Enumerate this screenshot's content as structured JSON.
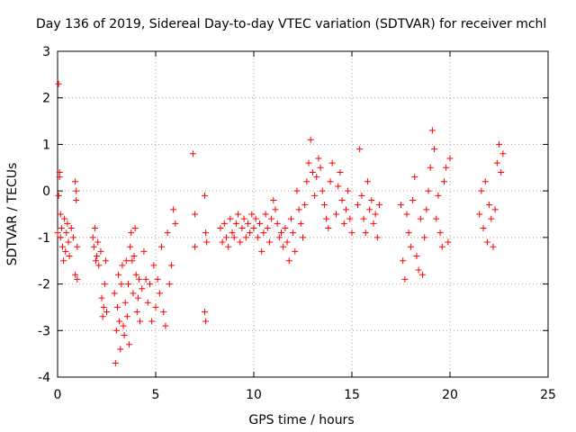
{
  "chart_data": {
    "type": "scatter",
    "title": "Day 136 of 2019, Sidereal Day-to-day VTEC variation (SDTVAR) for receiver mchl",
    "xlabel": "GPS time / hours",
    "ylabel": "SDTVAR / TECUs",
    "xlim": [
      0,
      25
    ],
    "ylim": [
      -4,
      3
    ],
    "xticks": [
      "0",
      "5",
      "10",
      "15",
      "20",
      "25"
    ],
    "yticks": [
      "-4",
      "-3",
      "-2",
      "-1",
      "0",
      "1",
      "2",
      "3"
    ],
    "grid": true,
    "marker": "plus",
    "color": "#ff0000",
    "series": [
      {
        "name": "SDTVAR",
        "x": [
          0.0,
          0.05,
          0.1,
          0.15,
          0.2,
          0.25,
          0.3,
          0.35,
          0.4,
          0.45,
          0.5,
          0.55,
          0.6,
          0.7,
          0.8,
          0.9,
          0.95,
          1.0,
          0.05,
          0.1,
          0.15,
          0.9,
          0.95,
          1.0,
          1.8,
          1.85,
          1.9,
          1.95,
          2.0,
          2.05,
          2.1,
          2.2,
          2.25,
          2.3,
          2.35,
          2.4,
          2.45,
          2.5,
          2.9,
          2.95,
          3.0,
          3.05,
          3.1,
          3.15,
          3.2,
          3.25,
          3.3,
          3.35,
          3.4,
          3.45,
          3.5,
          3.55,
          3.6,
          3.65,
          3.7,
          3.75,
          3.8,
          3.85,
          3.9,
          3.95,
          4.0,
          4.05,
          4.1,
          4.15,
          4.2,
          4.3,
          4.4,
          4.5,
          4.6,
          4.7,
          4.8,
          4.9,
          5.0,
          5.1,
          5.2,
          5.3,
          5.4,
          5.5,
          5.6,
          5.7,
          5.8,
          5.9,
          6.0,
          6.9,
          7.0,
          7.0,
          7.5,
          7.55,
          7.6,
          7.5,
          7.55,
          8.3,
          8.4,
          8.5,
          8.6,
          8.7,
          8.8,
          8.9,
          9.0,
          9.1,
          9.2,
          9.3,
          9.4,
          9.5,
          9.6,
          9.7,
          9.8,
          9.9,
          10.0,
          10.1,
          10.2,
          10.3,
          10.4,
          10.5,
          10.6,
          10.7,
          10.8,
          10.9,
          11.0,
          11.1,
          11.2,
          11.3,
          11.4,
          11.5,
          11.6,
          11.7,
          11.8,
          11.9,
          12.0,
          12.1,
          12.2,
          12.3,
          12.4,
          12.5,
          12.6,
          12.7,
          12.8,
          12.9,
          13.0,
          13.1,
          13.2,
          13.3,
          13.4,
          13.5,
          13.6,
          13.7,
          13.8,
          13.9,
          14.0,
          14.2,
          14.3,
          14.4,
          14.5,
          14.6,
          14.7,
          14.8,
          14.9,
          15.0,
          15.3,
          15.4,
          15.5,
          15.6,
          15.7,
          15.8,
          15.9,
          16.0,
          16.1,
          16.2,
          16.3,
          16.4,
          17.5,
          17.6,
          17.7,
          17.8,
          17.9,
          18.0,
          18.1,
          18.2,
          18.3,
          18.4,
          18.5,
          18.6,
          18.7,
          18.8,
          18.9,
          19.0,
          19.1,
          19.2,
          19.3,
          19.4,
          19.5,
          19.6,
          19.7,
          19.8,
          19.9,
          20.0,
          21.5,
          21.6,
          21.7,
          21.8,
          21.9,
          22.0,
          22.1,
          22.2,
          22.3,
          22.4,
          22.5,
          22.6,
          22.7
        ],
        "y": [
          -0.9,
          2.3,
          0.4,
          -1.0,
          -0.8,
          -1.2,
          -1.5,
          -0.6,
          -1.3,
          -0.9,
          -0.7,
          -1.1,
          -1.4,
          -0.8,
          -1.0,
          -1.8,
          0.0,
          -1.2,
          -0.1,
          0.3,
          -0.5,
          0.2,
          -0.2,
          -1.9,
          -1.0,
          -1.2,
          -0.8,
          -1.5,
          -1.4,
          -1.1,
          -1.6,
          -1.3,
          -2.3,
          -2.7,
          -2.5,
          -2.0,
          -1.5,
          -2.6,
          -2.2,
          -3.7,
          -3.0,
          -2.5,
          -1.8,
          -2.8,
          -3.4,
          -2.0,
          -1.6,
          -2.9,
          -3.1,
          -2.4,
          -1.5,
          -2.7,
          -2.0,
          -3.3,
          -1.2,
          -0.9,
          -1.5,
          -2.2,
          -1.4,
          -0.8,
          -1.8,
          -2.6,
          -2.3,
          -1.9,
          -2.8,
          -2.1,
          -1.3,
          -1.9,
          -2.4,
          -2.0,
          -2.8,
          -1.6,
          -2.5,
          -1.9,
          -2.2,
          -1.2,
          -2.6,
          -2.9,
          -0.9,
          -2.0,
          -1.6,
          -0.4,
          -0.7,
          0.8,
          -0.5,
          -1.2,
          -0.1,
          -0.9,
          -1.1,
          -2.6,
          -2.8,
          -0.8,
          -1.1,
          -0.7,
          -1.0,
          -1.2,
          -0.6,
          -0.9,
          -1.0,
          -0.7,
          -0.5,
          -1.1,
          -0.8,
          -0.6,
          -1.0,
          -0.7,
          -0.9,
          -0.5,
          -0.8,
          -0.6,
          -1.0,
          -0.7,
          -1.3,
          -0.9,
          -0.5,
          -0.8,
          -1.1,
          -0.6,
          -0.2,
          -0.4,
          -0.7,
          -1.0,
          -0.9,
          -1.2,
          -0.8,
          -1.1,
          -1.5,
          -0.6,
          -0.9,
          -1.3,
          0.0,
          -0.4,
          -0.7,
          -1.0,
          -0.3,
          0.2,
          0.6,
          1.1,
          0.4,
          -0.1,
          0.3,
          0.7,
          0.5,
          0.0,
          -0.3,
          -0.6,
          -0.8,
          0.2,
          0.6,
          -0.5,
          0.1,
          0.4,
          -0.2,
          -0.7,
          -0.4,
          0.0,
          -0.6,
          -0.9,
          -0.3,
          0.9,
          -0.1,
          -0.6,
          -0.9,
          0.2,
          -0.4,
          -0.2,
          -0.7,
          -0.5,
          -1.0,
          -0.3,
          -0.3,
          -1.5,
          -1.9,
          -0.5,
          -0.9,
          -1.2,
          -0.2,
          0.3,
          -1.4,
          -1.7,
          -0.6,
          -1.8,
          -1.0,
          -0.4,
          0.0,
          0.5,
          1.3,
          0.9,
          -0.6,
          -0.1,
          -0.9,
          -1.2,
          0.2,
          0.5,
          -1.1,
          0.7,
          -0.5,
          0.0,
          -0.8,
          0.2,
          -1.1,
          -0.3,
          -0.6,
          -1.2,
          -0.4,
          0.6,
          1.0,
          0.4,
          0.8
        ]
      }
    ]
  }
}
